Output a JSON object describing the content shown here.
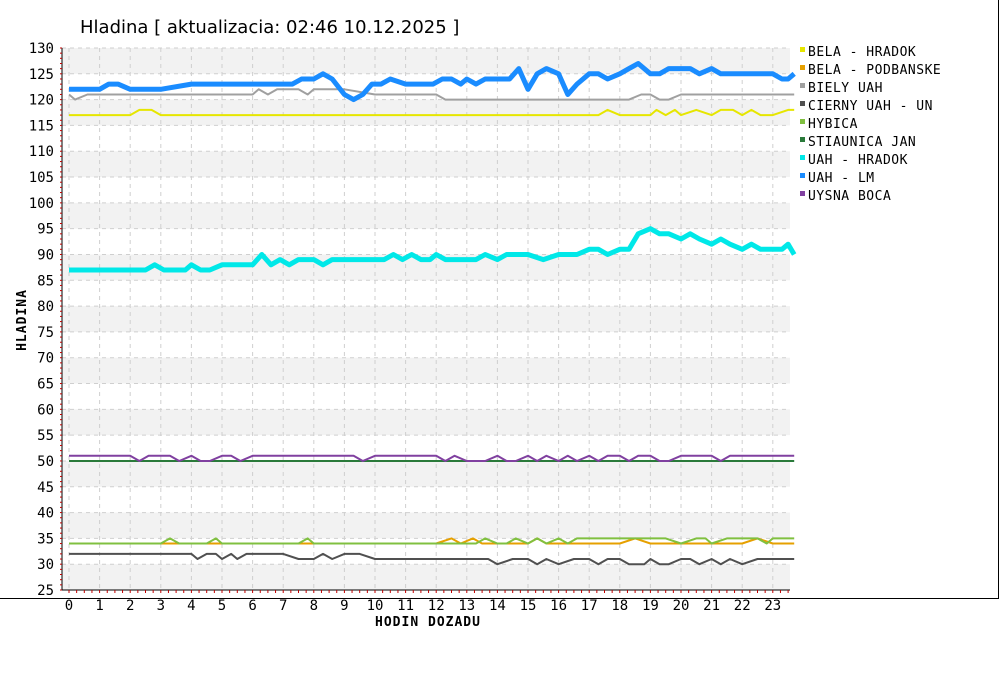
{
  "chart_data": {
    "type": "line",
    "title": "Hladina [ aktualizacia:  02:46  10.12.2025  ]",
    "xlabel": "HODIN DOZADU",
    "ylabel": "HLADINA",
    "xlim": [
      0,
      23.7
    ],
    "ylim": [
      25,
      130
    ],
    "x_ticks": [
      0,
      1,
      2,
      3,
      4,
      5,
      6,
      7,
      8,
      9,
      10,
      11,
      12,
      13,
      14,
      15,
      16,
      17,
      18,
      19,
      20,
      21,
      22,
      23
    ],
    "y_ticks": [
      25,
      30,
      35,
      40,
      45,
      50,
      55,
      60,
      65,
      70,
      75,
      80,
      85,
      90,
      95,
      100,
      105,
      110,
      115,
      120,
      125,
      130
    ],
    "grid": true,
    "legend_position": "right",
    "series": [
      {
        "name": "BELA - HRADOK",
        "color": "#e6e600",
        "x": [
          0,
          1,
          2,
          2.3,
          2.7,
          3,
          4,
          5,
          6,
          7,
          8,
          9,
          10,
          11,
          12,
          13,
          14,
          15,
          16,
          17,
          17.3,
          17.6,
          18,
          18.5,
          19,
          19.2,
          19.5,
          19.8,
          20,
          20.5,
          21,
          21.3,
          21.7,
          22,
          22.3,
          22.6,
          23,
          23.5,
          23.7
        ],
        "y": [
          117,
          117,
          117,
          118,
          118,
          117,
          117,
          117,
          117,
          117,
          117,
          117,
          117,
          117,
          117,
          117,
          117,
          117,
          117,
          117,
          117,
          118,
          117,
          117,
          117,
          118,
          117,
          118,
          117,
          118,
          117,
          118,
          118,
          117,
          118,
          117,
          117,
          118,
          118
        ]
      },
      {
        "name": "BELA - PODBANSKE",
        "color": "#e6a000",
        "x": [
          0,
          1,
          2,
          3,
          4,
          5,
          6,
          7,
          8,
          9,
          10,
          11,
          12,
          12.5,
          12.8,
          13.2,
          13.5,
          14,
          15,
          15.3,
          15.6,
          16,
          17,
          18,
          18.5,
          19,
          20,
          21,
          22,
          22.5,
          23,
          23.7
        ],
        "y": [
          34,
          34,
          34,
          34,
          34,
          34,
          34,
          34,
          34,
          34,
          34,
          34,
          34,
          35,
          34,
          35,
          34,
          34,
          34,
          35,
          34,
          34,
          34,
          34,
          35,
          34,
          34,
          34,
          34,
          35,
          34,
          34
        ]
      },
      {
        "name": "BIELY UAH",
        "color": "#a0a0a0",
        "x": [
          0,
          0.2,
          0.6,
          1,
          2,
          3,
          4,
          5,
          6,
          6.2,
          6.5,
          6.8,
          7,
          7.5,
          7.8,
          8,
          9,
          10,
          11,
          12,
          12.3,
          13,
          14,
          15,
          16,
          17,
          18,
          18.3,
          18.7,
          19,
          19.3,
          19.6,
          20,
          20.5,
          21,
          22,
          23,
          23.7
        ],
        "y": [
          121,
          120,
          121,
          121,
          121,
          121,
          121,
          121,
          121,
          122,
          121,
          122,
          122,
          122,
          121,
          122,
          122,
          121,
          121,
          121,
          120,
          120,
          120,
          120,
          120,
          120,
          120,
          120,
          121,
          121,
          120,
          120,
          121,
          121,
          121,
          121,
          121,
          121
        ]
      },
      {
        "name": "CIERNY UAH - UN",
        "color": "#505050",
        "x": [
          0,
          1,
          2,
          3,
          4,
          4.2,
          4.5,
          4.8,
          5,
          5.3,
          5.5,
          5.8,
          6,
          6.3,
          7,
          7.5,
          8,
          8.3,
          8.6,
          9,
          9.5,
          10,
          11,
          12,
          13,
          13.7,
          14,
          14.5,
          15,
          15.3,
          15.6,
          16,
          16.5,
          17,
          17.3,
          17.6,
          18,
          18.3,
          18.8,
          19,
          19.3,
          19.6,
          20,
          20.3,
          20.6,
          21,
          21.3,
          21.6,
          22,
          22.5,
          23,
          23.7
        ],
        "y": [
          32,
          32,
          32,
          32,
          32,
          31,
          32,
          32,
          31,
          32,
          31,
          32,
          32,
          32,
          32,
          31,
          31,
          32,
          31,
          32,
          32,
          31,
          31,
          31,
          31,
          31,
          30,
          31,
          31,
          30,
          31,
          30,
          31,
          31,
          30,
          31,
          31,
          30,
          30,
          31,
          30,
          30,
          31,
          31,
          30,
          31,
          30,
          31,
          30,
          31,
          31,
          31
        ]
      },
      {
        "name": "HYBICA",
        "color": "#80c040",
        "x": [
          0,
          1,
          2,
          3,
          3.3,
          3.6,
          4,
          4.5,
          4.8,
          5,
          6,
          7,
          7.5,
          7.8,
          8,
          9,
          10,
          11,
          12,
          13,
          13.3,
          13.6,
          14,
          14.3,
          14.6,
          15,
          15.3,
          15.6,
          16,
          16.3,
          16.6,
          17,
          17.5,
          18,
          18.5,
          19,
          19.5,
          20,
          20.5,
          20.8,
          21,
          21.5,
          22,
          22.5,
          22.8,
          23,
          23.7
        ],
        "y": [
          34,
          34,
          34,
          34,
          35,
          34,
          34,
          34,
          35,
          34,
          34,
          34,
          34,
          35,
          34,
          34,
          34,
          34,
          34,
          34,
          34,
          35,
          34,
          34,
          35,
          34,
          35,
          34,
          35,
          34,
          35,
          35,
          35,
          35,
          35,
          35,
          35,
          34,
          35,
          35,
          34,
          35,
          35,
          35,
          34,
          35,
          35
        ]
      },
      {
        "name": "STIAUNICA JAN",
        "color": "#2a7a3a",
        "x": [
          0,
          23.7
        ],
        "y": [
          50,
          50
        ]
      },
      {
        "name": "UAH - HRADOK",
        "color": "#00e8e8",
        "x": [
          0,
          0.5,
          1,
          1.5,
          2,
          2.5,
          2.8,
          3.1,
          3.5,
          3.8,
          4,
          4.3,
          4.6,
          5,
          5.5,
          5.8,
          6,
          6.3,
          6.6,
          6.9,
          7.2,
          7.5,
          8,
          8.3,
          8.6,
          9,
          9.5,
          10,
          10.3,
          10.6,
          10.9,
          11.2,
          11.5,
          11.8,
          12,
          12.3,
          12.6,
          13,
          13.3,
          13.6,
          14,
          14.3,
          14.6,
          15,
          15.5,
          16,
          16.3,
          16.6,
          17,
          17.3,
          17.6,
          18,
          18.3,
          18.6,
          19,
          19.3,
          19.6,
          20,
          20.3,
          20.6,
          21,
          21.3,
          21.6,
          22,
          22.3,
          22.6,
          23,
          23.3,
          23.5,
          23.7
        ],
        "y": [
          87,
          87,
          87,
          87,
          87,
          87,
          88,
          87,
          87,
          87,
          88,
          87,
          87,
          88,
          88,
          88,
          88,
          90,
          88,
          89,
          88,
          89,
          89,
          88,
          89,
          89,
          89,
          89,
          89,
          90,
          89,
          90,
          89,
          89,
          90,
          89,
          89,
          89,
          89,
          90,
          89,
          90,
          90,
          90,
          89,
          90,
          90,
          90,
          91,
          91,
          90,
          91,
          91,
          94,
          95,
          94,
          94,
          93,
          94,
          93,
          92,
          93,
          92,
          91,
          92,
          91,
          91,
          91,
          92,
          90
        ]
      },
      {
        "name": "UAH - LM",
        "color": "#1a8cff",
        "x": [
          0,
          0.5,
          1,
          1.3,
          1.6,
          2,
          2.5,
          3,
          4,
          5,
          6,
          7,
          7.3,
          7.6,
          8,
          8.3,
          8.6,
          9,
          9.3,
          9.6,
          9.9,
          10.2,
          10.5,
          11,
          11.3,
          11.6,
          11.9,
          12.2,
          12.5,
          12.8,
          13,
          13.3,
          13.6,
          13.8,
          14.1,
          14.4,
          14.7,
          15,
          15.3,
          15.6,
          16,
          16.3,
          16.6,
          17,
          17.3,
          17.6,
          18,
          18.3,
          18.6,
          19,
          19.3,
          19.6,
          20,
          20.3,
          20.6,
          21,
          21.3,
          21.6,
          22,
          22.3,
          22.6,
          23,
          23.3,
          23.5,
          23.7
        ],
        "y": [
          122,
          122,
          122,
          123,
          123,
          122,
          122,
          122,
          123,
          123,
          123,
          123,
          123,
          124,
          124,
          125,
          124,
          121,
          120,
          121,
          123,
          123,
          124,
          123,
          123,
          123,
          123,
          124,
          124,
          123,
          124,
          123,
          124,
          124,
          124,
          124,
          126,
          122,
          125,
          126,
          125,
          121,
          123,
          125,
          125,
          124,
          125,
          126,
          127,
          125,
          125,
          126,
          126,
          126,
          125,
          126,
          125,
          125,
          125,
          125,
          125,
          125,
          124,
          124,
          125
        ]
      },
      {
        "name": "UYSNA BOCA",
        "color": "#8040a0",
        "x": [
          0,
          1,
          2,
          2.3,
          2.6,
          3,
          3.3,
          3.6,
          4,
          4.3,
          4.6,
          5,
          5.3,
          5.6,
          6,
          7,
          8,
          9,
          9.3,
          9.6,
          10,
          11,
          12,
          12.3,
          12.6,
          13,
          13.3,
          13.6,
          14,
          14.3,
          14.6,
          15,
          15.3,
          15.6,
          16,
          16.3,
          16.6,
          17,
          17.3,
          17.6,
          18,
          18.3,
          18.6,
          19,
          19.3,
          19.6,
          20,
          20.5,
          21,
          21.3,
          21.6,
          22,
          22.5,
          23,
          23.7
        ],
        "y": [
          51,
          51,
          51,
          50,
          51,
          51,
          51,
          50,
          51,
          50,
          50,
          51,
          51,
          50,
          51,
          51,
          51,
          51,
          51,
          50,
          51,
          51,
          51,
          50,
          51,
          50,
          50,
          50,
          51,
          50,
          50,
          51,
          50,
          51,
          50,
          51,
          50,
          51,
          50,
          51,
          51,
          50,
          51,
          51,
          50,
          50,
          51,
          51,
          51,
          50,
          51,
          51,
          51,
          51,
          51
        ]
      }
    ]
  }
}
